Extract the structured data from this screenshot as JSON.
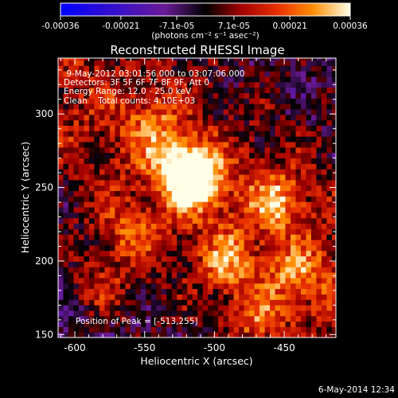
{
  "colorbar": {
    "ticks": [
      "-0.00036",
      "-0.00021",
      "-7.1e-05",
      "7.1e-05",
      "0.00021",
      "0.00036"
    ],
    "tick_values": [
      -0.00036,
      -0.00021,
      -7.1e-05,
      7.1e-05,
      0.00021,
      0.00036
    ],
    "range": [
      -0.00036,
      0.00036
    ],
    "unit_label": "(photons cm⁻² s⁻¹ asec⁻²)",
    "colors": [
      "#0000ff",
      "#5a1aa6",
      "#7a1a86",
      "#000000",
      "#a00000",
      "#e02800",
      "#ff7000",
      "#ffd000",
      "#ffffe0"
    ]
  },
  "image": {
    "title": "Reconstructed RHESSI Image",
    "info_lines": [
      " 9-May-2012 03:01:56.000 to 03:07:06.000",
      "Detectors: 3F 5F 6F 7F 8F 9F, Att 0",
      "Energy Range: 12.0 - 25.0 keV",
      "Clean    Total counts: 4.10E+03"
    ],
    "peak_label": "Position of Peak = [-513,255]",
    "peak": [
      -513,
      255
    ]
  },
  "chart_data": {
    "type": "heatmap",
    "title": "Reconstructed RHESSI Image",
    "xlabel": "Heliocentric X (arcsec)",
    "ylabel": "Heliocentric Y (arcsec)",
    "xlim": [
      -612,
      -413
    ],
    "ylim": [
      148,
      338
    ],
    "xticks": [
      -600,
      -550,
      -500,
      -450
    ],
    "yticks": [
      150,
      200,
      250,
      300
    ],
    "peak": [
      -513,
      255
    ],
    "sources": [
      {
        "x": -513,
        "y": 255,
        "level": 0.00036
      },
      {
        "x": -528,
        "y": 268,
        "level": 0.00024
      },
      {
        "x": -455,
        "y": 242,
        "level": 0.00021
      },
      {
        "x": -490,
        "y": 200,
        "level": 0.00018
      },
      {
        "x": -560,
        "y": 220,
        "level": 0.00015
      },
      {
        "x": -580,
        "y": 185,
        "level": 0.00014
      },
      {
        "x": -440,
        "y": 190,
        "level": 0.00016
      },
      {
        "x": -470,
        "y": 160,
        "level": 0.00015
      },
      {
        "x": -545,
        "y": 295,
        "level": 0.00012
      }
    ]
  },
  "footer": {
    "date": "6-May-2014 12:34"
  }
}
